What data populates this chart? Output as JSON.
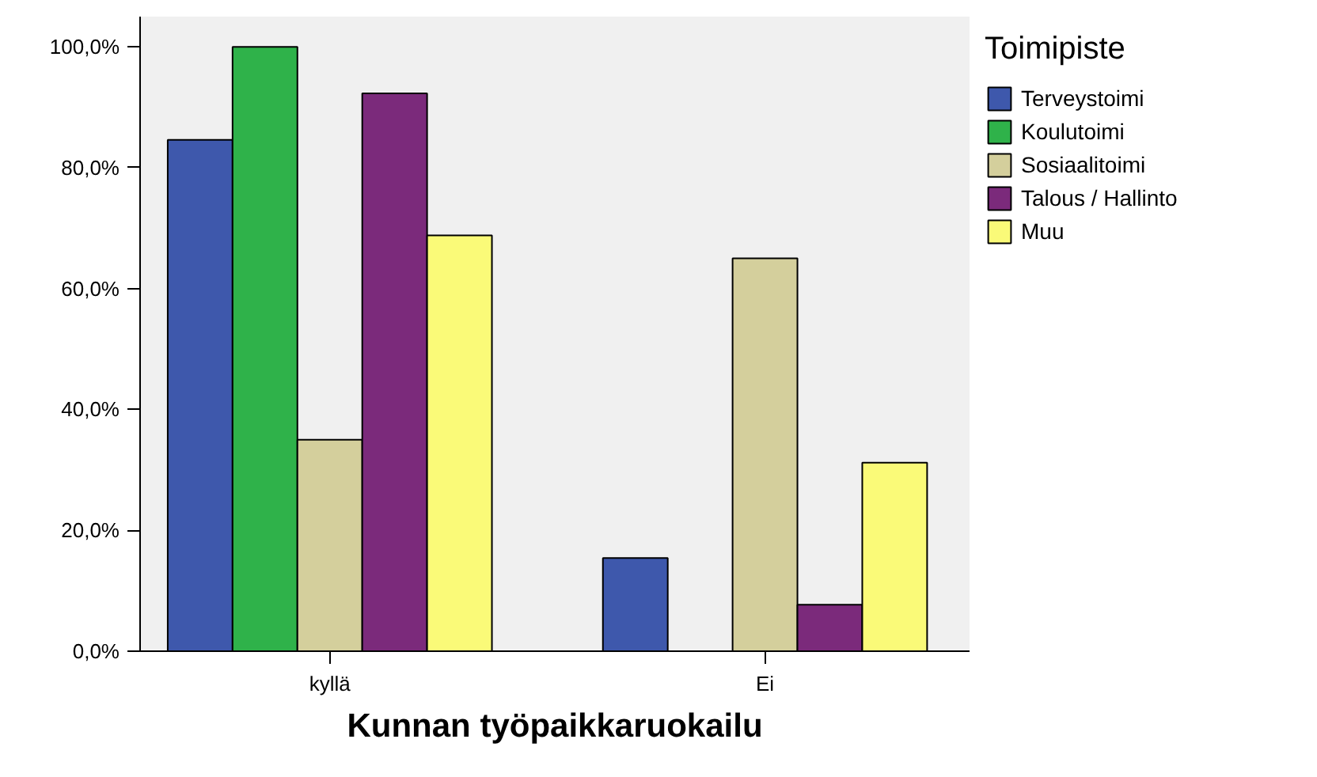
{
  "chart_data": {
    "type": "bar",
    "xlabel": "Kunnan työpaikkaruokailu",
    "legend_title": "Toimipiste",
    "categories": [
      "kyllä",
      "Ei"
    ],
    "series": [
      {
        "name": "Terveystoimi",
        "color": "#3e58ac",
        "values": [
          84.6,
          15.4
        ]
      },
      {
        "name": "Koulutoimi",
        "color": "#2fb24a",
        "values": [
          100.0,
          0.0
        ]
      },
      {
        "name": "Sosiaalitoimi",
        "color": "#d4cf9c",
        "values": [
          35.0,
          65.0
        ]
      },
      {
        "name": "Talous / Hallinto",
        "color": "#7b2a7b",
        "values": [
          92.3,
          7.7
        ]
      },
      {
        "name": "Muu",
        "color": "#fafa78",
        "values": [
          68.8,
          31.2
        ]
      }
    ],
    "ylim": [
      0,
      105
    ],
    "yticks": [
      {
        "value": 0,
        "label": "0,0%"
      },
      {
        "value": 20,
        "label": "20,0%"
      },
      {
        "value": 40,
        "label": "40,0%"
      },
      {
        "value": 60,
        "label": "60,0%"
      },
      {
        "value": 80,
        "label": "80,0%"
      },
      {
        "value": 100,
        "label": "100,0%"
      }
    ],
    "grid": false,
    "legend": "right"
  }
}
